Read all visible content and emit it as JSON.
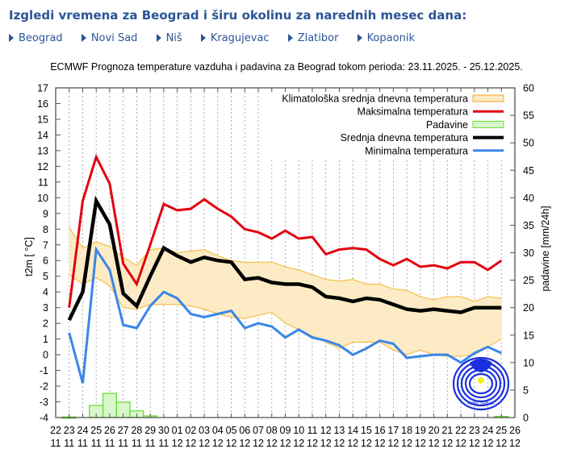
{
  "header": {
    "title": "Izgledi vremena za Beograd i širu okolinu za narednih mesec dana:",
    "cities": [
      "Beograd",
      "Novi Sad",
      "Niš",
      "Kragujevac",
      "Zlatibor",
      "Kopaonik"
    ],
    "link_color": "#2b5597"
  },
  "chart_data": {
    "type": "line",
    "title": "ECMWF Prognoza temperature vazduha i padavina za Beograd tokom perioda: 23.11.2025. - 25.12.2025.",
    "ylabel": "t2m [ °C]",
    "y2label": "padavine [mm/24h]",
    "ylim": [
      -4,
      17
    ],
    "y2lim": [
      0,
      60
    ],
    "yticks": [
      "-4",
      "-3",
      "-2",
      "-1",
      "0",
      "1",
      "2",
      "3",
      "4",
      "5",
      "6",
      "7",
      "8",
      "9",
      "10",
      "11",
      "12",
      "13",
      "14",
      "15",
      "16",
      "17"
    ],
    "y2ticks": [
      "0",
      "5",
      "10",
      "15",
      "20",
      "25",
      "30",
      "35",
      "40",
      "45",
      "50",
      "55",
      "60"
    ],
    "xtick_days": [
      "22",
      "23",
      "24",
      "25",
      "26",
      "27",
      "28",
      "29",
      "30",
      "01",
      "02",
      "03",
      "04",
      "05",
      "06",
      "07",
      "08",
      "09",
      "10",
      "11",
      "12",
      "13",
      "14",
      "15",
      "16",
      "17",
      "18",
      "19",
      "20",
      "21",
      "22",
      "23",
      "24",
      "25",
      "26"
    ],
    "xtick_months": [
      "11",
      "11",
      "11",
      "11",
      "11",
      "11",
      "11",
      "11",
      "11",
      "12",
      "12",
      "12",
      "12",
      "12",
      "12",
      "12",
      "12",
      "12",
      "12",
      "12",
      "12",
      "12",
      "12",
      "12",
      "12",
      "12",
      "12",
      "12",
      "12",
      "12",
      "12",
      "12",
      "12",
      "12",
      "12"
    ],
    "grid": "vertical dotted",
    "legend_position": "top-right",
    "legend": [
      {
        "label": "Klimatološka srednja dnevna temperatura",
        "color": "#f5a623",
        "fill": "#fcebc4",
        "kind": "band"
      },
      {
        "label": "Maksimalna temperatura",
        "color": "#e3000f",
        "kind": "line"
      },
      {
        "label": "Padavine",
        "color": "#66dd33",
        "fill": "#d9f7cc",
        "kind": "bar"
      },
      {
        "label": "Srednja dnevna temperatura",
        "color": "#000000",
        "kind": "line"
      },
      {
        "label": "Minimalna temperatura",
        "color": "#3a86e8",
        "kind": "line"
      }
    ],
    "x_start_index": 1,
    "series": [
      {
        "name": "Maksimalna temperatura",
        "color": "#e3000f",
        "width": 3,
        "values": [
          3.0,
          9.8,
          12.6,
          10.9,
          5.8,
          4.5,
          7.0,
          9.6,
          9.2,
          9.3,
          9.9,
          9.3,
          8.8,
          8.0,
          7.8,
          7.4,
          7.9,
          7.4,
          7.5,
          6.4,
          6.7,
          6.8,
          6.7,
          6.1,
          5.7,
          6.1,
          5.6,
          5.7,
          5.5,
          5.9,
          5.9,
          5.4,
          6.0
        ]
      },
      {
        "name": "Srednja dnevna temperatura",
        "color": "#000000",
        "width": 4.5,
        "values": [
          2.2,
          4.0,
          9.8,
          8.3,
          3.9,
          3.1,
          5.0,
          6.8,
          6.3,
          5.9,
          6.2,
          6.0,
          5.9,
          4.8,
          4.9,
          4.6,
          4.5,
          4.5,
          4.3,
          3.7,
          3.6,
          3.4,
          3.6,
          3.5,
          3.2,
          2.9,
          2.8,
          2.9,
          2.8,
          2.7,
          3.0,
          3.0,
          3.0
        ]
      },
      {
        "name": "Minimalna temperatura",
        "color": "#3a86e8",
        "width": 3,
        "values": [
          1.4,
          -1.8,
          6.7,
          5.4,
          1.9,
          1.7,
          3.1,
          4.0,
          3.6,
          2.6,
          2.4,
          2.6,
          2.8,
          1.7,
          2.0,
          1.8,
          1.1,
          1.6,
          1.1,
          0.9,
          0.6,
          0.0,
          0.4,
          0.9,
          0.7,
          -0.2,
          -0.1,
          0.0,
          0.0,
          -0.5,
          0.1,
          0.5,
          0.1
        ]
      }
    ],
    "climatology": {
      "upper": [
        8.1,
        6.8,
        7.2,
        6.9,
        6.2,
        5.7,
        6.7,
        6.8,
        6.5,
        6.6,
        6.7,
        6.3,
        6.0,
        5.9,
        5.9,
        5.9,
        5.6,
        5.4,
        5.1,
        4.8,
        4.7,
        4.8,
        4.5,
        4.5,
        4.2,
        4.1,
        3.7,
        3.5,
        3.7,
        3.7,
        3.4,
        3.7,
        3.6
      ],
      "lower": [
        5.1,
        4.5,
        4.9,
        4.4,
        3.0,
        2.9,
        3.2,
        3.2,
        3.2,
        3.1,
        2.9,
        2.6,
        2.4,
        2.3,
        2.5,
        2.7,
        2.0,
        1.6,
        1.2,
        0.8,
        0.4,
        0.8,
        0.8,
        0.8,
        0.3,
        0.0,
        0.3,
        0.0,
        -0.1,
        -0.1,
        0.0,
        0.5,
        1.0
      ]
    },
    "precipitation": [
      0.1,
      0.0,
      2.2,
      4.4,
      2.8,
      1.2,
      0.3,
      0,
      0,
      0,
      0,
      0,
      0,
      0,
      0,
      0,
      0,
      0,
      0,
      0,
      0,
      0,
      0,
      0,
      0,
      0,
      0,
      0,
      0,
      0,
      0,
      0,
      0.2
    ]
  },
  "logo": {
    "text": "RHMZ SRBIJE"
  }
}
